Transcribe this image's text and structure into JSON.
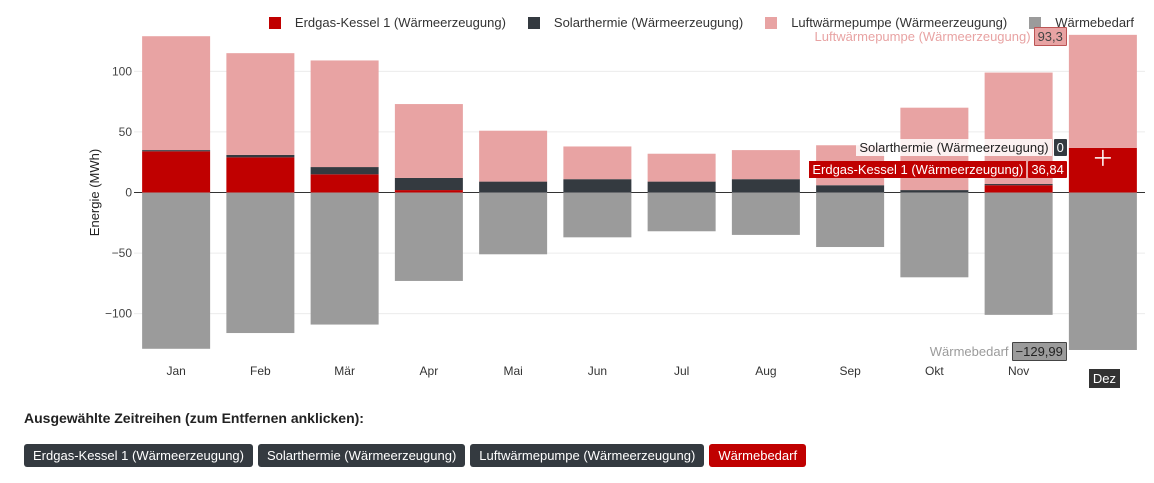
{
  "chart_data": {
    "type": "bar",
    "stacked": true,
    "categories": [
      "Jan",
      "Feb",
      "Mär",
      "Apr",
      "Mai",
      "Jun",
      "Jul",
      "Aug",
      "Sep",
      "Okt",
      "Nov",
      "Dez"
    ],
    "ylabel": "Energie (MWh)",
    "ylim": [
      -130,
      130
    ],
    "yticks": [
      -100,
      -50,
      0,
      50,
      100
    ],
    "ytick_labels": [
      "−100",
      "−50",
      "0",
      "50",
      "100"
    ],
    "series": [
      {
        "name": "Erdgas-Kessel 1 (Wärmeerzeugung)",
        "color": "#c00000",
        "values": [
          34,
          29,
          15,
          2,
          0,
          0,
          0,
          0,
          0,
          0,
          6,
          36.84
        ]
      },
      {
        "name": "Solarthermie (Wärmeerzeugung)",
        "color": "#343a40",
        "values": [
          1,
          2,
          6,
          10,
          9,
          11,
          9,
          11,
          6,
          2,
          1,
          0
        ]
      },
      {
        "name": "Luftwärmepumpe (Wärmeerzeugung)",
        "color": "#e8a3a3",
        "values": [
          94,
          84,
          88,
          61,
          42,
          27,
          23,
          24,
          33,
          68,
          92,
          93.3
        ]
      },
      {
        "name": "Wärmebedarf",
        "color": "#9b9b9b",
        "values": [
          -129,
          -116,
          -109,
          -73,
          -51,
          -37,
          -32,
          -35,
          -45,
          -70,
          -101,
          -129.99
        ]
      }
    ],
    "hover": {
      "category": "Dez",
      "items": [
        {
          "name": "Luftwärmepumpe (Wärmeerzeugung)",
          "value_label": "93,3",
          "color": "#e8a3a3"
        },
        {
          "name": "Solarthermie (Wärmeerzeugung)",
          "value_label": "0",
          "color": "#343a40"
        },
        {
          "name": "Erdgas-Kessel 1 (Wärmeerzeugung)",
          "value_label": "36,84",
          "color": "#c00000"
        },
        {
          "name": "Wärmebedarf",
          "value_label": "−129,99",
          "color": "#9b9b9b"
        }
      ]
    },
    "legend_position": "top-right",
    "grid": true
  },
  "selection": {
    "title": "Ausgewählte Zeitreihen (zum Entfernen anklicken):",
    "chips": [
      {
        "label": "Erdgas-Kessel 1 (Wärmeerzeugung)",
        "color": "#343a40"
      },
      {
        "label": "Solarthermie (Wärmeerzeugung)",
        "color": "#343a40"
      },
      {
        "label": "Luftwärmepumpe (Wärmeerzeugung)",
        "color": "#343a40"
      },
      {
        "label": "Wärmebedarf",
        "color": "#c00000"
      }
    ]
  }
}
